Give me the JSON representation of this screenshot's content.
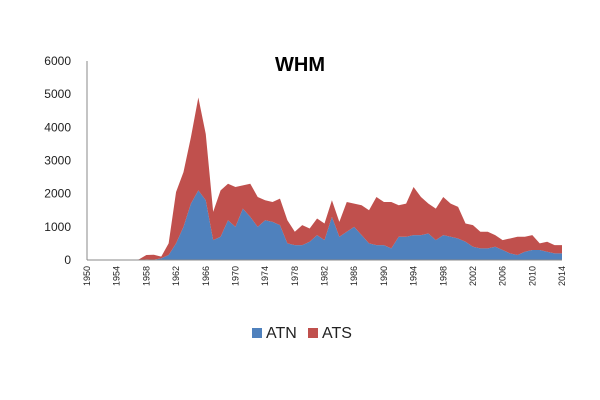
{
  "chart_data": {
    "type": "area",
    "stacked": true,
    "title": "WHM",
    "xlabel": "",
    "ylabel": "",
    "ylim": [
      0,
      6000
    ],
    "yticks": [
      0,
      1000,
      2000,
      3000,
      4000,
      5000,
      6000
    ],
    "yticklabels": [
      "0",
      "1000",
      "2000",
      "3000",
      "4000",
      "5000",
      "6000"
    ],
    "xlim": [
      1950,
      2014
    ],
    "xticks": [
      1950,
      1954,
      1958,
      1962,
      1966,
      1970,
      1974,
      1978,
      1982,
      1986,
      1990,
      1994,
      1998,
      2002,
      2006,
      2010,
      2014
    ],
    "xticklabels": [
      "1950",
      "1954",
      "1958",
      "1962",
      "1966",
      "1970",
      "1974",
      "1978",
      "1982",
      "1986",
      "1990",
      "1994",
      "1998",
      "2002",
      "2006",
      "2010",
      "2014"
    ],
    "grid": false,
    "legend_position": "bottom",
    "x": [
      1950,
      1951,
      1952,
      1953,
      1954,
      1955,
      1956,
      1957,
      1958,
      1959,
      1960,
      1961,
      1962,
      1963,
      1964,
      1965,
      1966,
      1967,
      1968,
      1969,
      1970,
      1971,
      1972,
      1973,
      1974,
      1975,
      1976,
      1977,
      1978,
      1979,
      1980,
      1981,
      1982,
      1983,
      1984,
      1985,
      1986,
      1987,
      1988,
      1989,
      1990,
      1991,
      1992,
      1993,
      1994,
      1995,
      1996,
      1997,
      1998,
      1999,
      2000,
      2001,
      2002,
      2003,
      2004,
      2005,
      2006,
      2007,
      2008,
      2009,
      2010,
      2011,
      2012,
      2013,
      2014
    ],
    "series": [
      {
        "name": "ATN",
        "color": "#4F81BD",
        "values": [
          0,
          0,
          0,
          0,
          0,
          0,
          0,
          0,
          20,
          10,
          50,
          150,
          500,
          1000,
          1700,
          2100,
          1800,
          600,
          700,
          1200,
          1000,
          1550,
          1300,
          1000,
          1200,
          1150,
          1050,
          500,
          450,
          450,
          550,
          750,
          600,
          1300,
          700,
          850,
          1000,
          750,
          500,
          450,
          450,
          350,
          700,
          700,
          750,
          750,
          800,
          600,
          750,
          700,
          650,
          550,
          400,
          350,
          350,
          400,
          300,
          200,
          150,
          250,
          300,
          300,
          250,
          200,
          200
        ]
      },
      {
        "name": "ATS",
        "color": "#C0504D",
        "values": [
          0,
          0,
          0,
          0,
          0,
          0,
          0,
          20,
          130,
          150,
          50,
          350,
          1550,
          1650,
          2000,
          2800,
          2000,
          850,
          1400,
          1100,
          1200,
          700,
          1000,
          900,
          600,
          600,
          800,
          700,
          400,
          600,
          400,
          500,
          500,
          500,
          450,
          900,
          700,
          900,
          1000,
          1450,
          1300,
          1400,
          950,
          1000,
          1450,
          1150,
          900,
          950,
          1150,
          1000,
          950,
          550,
          650,
          500,
          500,
          350,
          300,
          450,
          550,
          450,
          450,
          200,
          300,
          250,
          250
        ]
      }
    ]
  }
}
